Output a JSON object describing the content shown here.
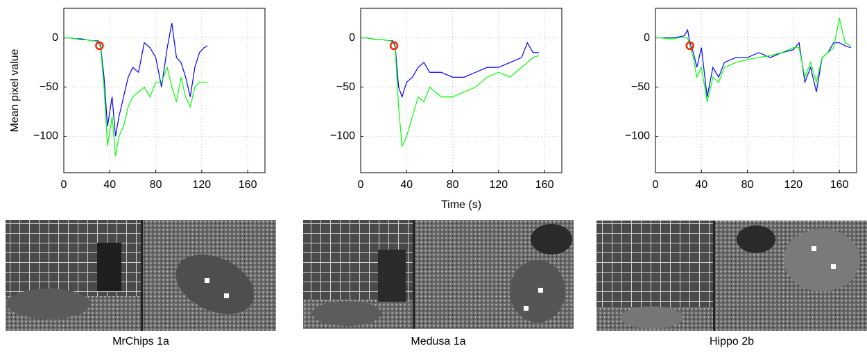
{
  "chart_data": [
    {
      "type": "line",
      "ylabel": "Mean pixel value",
      "caption": "MrChips 1a",
      "xlim": [
        0,
        175
      ],
      "ylim": [
        -137,
        30
      ],
      "xticks": [
        0,
        40,
        80,
        120,
        160
      ],
      "yticks": [
        -100,
        -50,
        0
      ],
      "grid": true,
      "x": [
        0,
        5,
        10,
        15,
        20,
        25,
        30,
        32,
        35,
        38,
        42,
        45,
        48,
        52,
        56,
        60,
        65,
        70,
        75,
        80,
        85,
        90,
        94,
        98,
        102,
        106,
        110,
        114,
        118,
        122,
        125
      ],
      "series": [
        {
          "color": "#0000ff",
          "values": [
            0,
            0,
            -1,
            -1,
            -2,
            -3,
            -3,
            -8,
            -40,
            -90,
            -60,
            -100,
            -80,
            -60,
            -40,
            -30,
            -35,
            -5,
            -10,
            -20,
            -50,
            -10,
            15,
            -20,
            -25,
            -40,
            -60,
            -30,
            -15,
            -10,
            -8
          ]
        },
        {
          "color": "#00ff00",
          "values": [
            0,
            0,
            -1,
            -2,
            -2,
            -3,
            -4,
            -10,
            -50,
            -110,
            -80,
            -120,
            -100,
            -90,
            -70,
            -60,
            -55,
            -50,
            -60,
            -45,
            -45,
            -30,
            -50,
            -65,
            -40,
            -60,
            -70,
            -50,
            -45,
            -45,
            -45
          ]
        }
      ],
      "marker": {
        "x": 31,
        "y": -8,
        "color": "#ff2000"
      }
    },
    {
      "type": "line",
      "xlabel": "Time (s)",
      "caption": "Medusa 1a",
      "xlim": [
        0,
        175
      ],
      "ylim": [
        -137,
        30
      ],
      "xticks": [
        0,
        40,
        80,
        120,
        160
      ],
      "yticks": [
        -100,
        -50,
        0
      ],
      "grid": true,
      "x": [
        0,
        5,
        10,
        15,
        20,
        25,
        28,
        30,
        33,
        36,
        40,
        45,
        50,
        55,
        60,
        70,
        80,
        90,
        100,
        110,
        120,
        130,
        140,
        145,
        150,
        155
      ],
      "series": [
        {
          "color": "#0000ff",
          "values": [
            0,
            0,
            -1,
            -2,
            -2,
            -3,
            -3,
            -8,
            -50,
            -60,
            -45,
            -40,
            -30,
            -25,
            -35,
            -35,
            -40,
            -40,
            -35,
            -30,
            -30,
            -25,
            -20,
            -5,
            -15,
            -15
          ]
        },
        {
          "color": "#00ff00",
          "values": [
            0,
            0,
            -1,
            -2,
            -2,
            -3,
            -4,
            -10,
            -70,
            -110,
            -100,
            -80,
            -60,
            -65,
            -50,
            -60,
            -60,
            -55,
            -50,
            -40,
            -35,
            -40,
            -30,
            -25,
            -20,
            -18
          ]
        }
      ],
      "marker": {
        "x": 29,
        "y": -8,
        "color": "#ff2000"
      }
    },
    {
      "type": "line",
      "caption": "Hippo 2b",
      "xlim": [
        0,
        175
      ],
      "ylim": [
        -137,
        30
      ],
      "xticks": [
        0,
        40,
        80,
        120,
        160
      ],
      "yticks": [
        -100,
        -50,
        0
      ],
      "grid": true,
      "x": [
        0,
        5,
        10,
        15,
        20,
        25,
        28,
        30,
        33,
        36,
        40,
        45,
        50,
        55,
        60,
        70,
        80,
        90,
        100,
        110,
        120,
        125,
        130,
        135,
        140,
        145,
        150,
        155,
        160,
        165,
        170
      ],
      "series": [
        {
          "color": "#0000ff",
          "values": [
            0,
            0,
            0,
            0,
            1,
            2,
            8,
            -5,
            -15,
            -30,
            -10,
            -60,
            -30,
            -40,
            -25,
            -20,
            -20,
            -15,
            -20,
            -15,
            -12,
            -5,
            -45,
            -30,
            -55,
            -20,
            -15,
            -5,
            -5,
            -8,
            -10
          ]
        },
        {
          "color": "#00ff00",
          "values": [
            0,
            0,
            -1,
            -1,
            0,
            0,
            0,
            -8,
            -20,
            -40,
            -30,
            -65,
            -40,
            -45,
            -30,
            -25,
            -22,
            -20,
            -18,
            -15,
            -10,
            -10,
            -40,
            -25,
            -45,
            -20,
            -15,
            -10,
            20,
            -5,
            -8
          ]
        }
      ],
      "marker": {
        "x": 30,
        "y": -8,
        "color": "#ff2000"
      }
    }
  ]
}
